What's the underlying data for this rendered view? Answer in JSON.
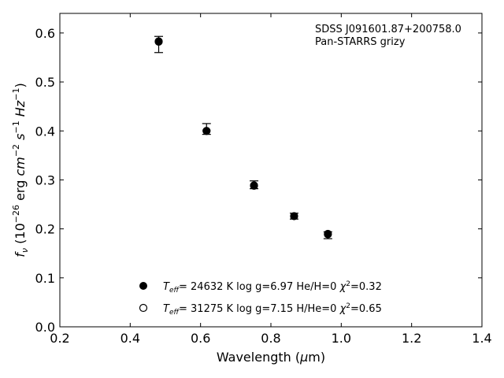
{
  "chart_data": {
    "type": "scatter",
    "xlabel": "Wavelength (μm)",
    "ylabel": "f_ν (10^-26 erg cm^-2 s^-1 Hz^-1)",
    "xlim": [
      0.2,
      1.4
    ],
    "ylim": [
      0.0,
      0.64
    ],
    "xticks": [
      0.2,
      0.4,
      0.6,
      0.8,
      1.0,
      1.2,
      1.4
    ],
    "yticks": [
      0.0,
      0.1,
      0.2,
      0.3,
      0.4,
      0.5,
      0.6
    ],
    "xtick_labels": [
      "0.2",
      "0.4",
      "0.6",
      "0.8",
      "1.0",
      "1.2",
      "1.4"
    ],
    "ytick_labels": [
      "0.0",
      "0.1",
      "0.2",
      "0.3",
      "0.4",
      "0.5",
      "0.6"
    ],
    "grid": false,
    "annotations": [
      "SDSS J091601.87+200758.0",
      "Pan-STARRS grizy"
    ],
    "observed": {
      "x": [
        0.481,
        0.617,
        0.752,
        0.866,
        0.962
      ],
      "y": [
        0.582,
        0.4,
        0.289,
        0.226,
        0.19
      ],
      "err_plus": [
        0.011,
        0.015,
        0.009,
        0.006,
        0.004
      ],
      "err_minus": [
        0.022,
        0.007,
        0.007,
        0.006,
        0.01
      ]
    },
    "series": [
      {
        "marker": "filled-circle",
        "label": "T_eff= 24632 K  log g=6.97  He/H=0  χ²=0.32",
        "x": [
          0.481,
          0.617,
          0.752,
          0.866,
          0.962
        ],
        "y": [
          0.582,
          0.4,
          0.289,
          0.226,
          0.19
        ]
      },
      {
        "marker": "open-circle",
        "label": "T_eff= 31275 K  log g=7.15  H/He=0  χ²=0.65",
        "x": [
          0.481,
          0.617,
          0.752,
          0.866,
          0.962
        ],
        "y": [
          0.583,
          0.4,
          0.288,
          0.226,
          0.189
        ]
      }
    ],
    "legend_placement": "bottom-center"
  }
}
